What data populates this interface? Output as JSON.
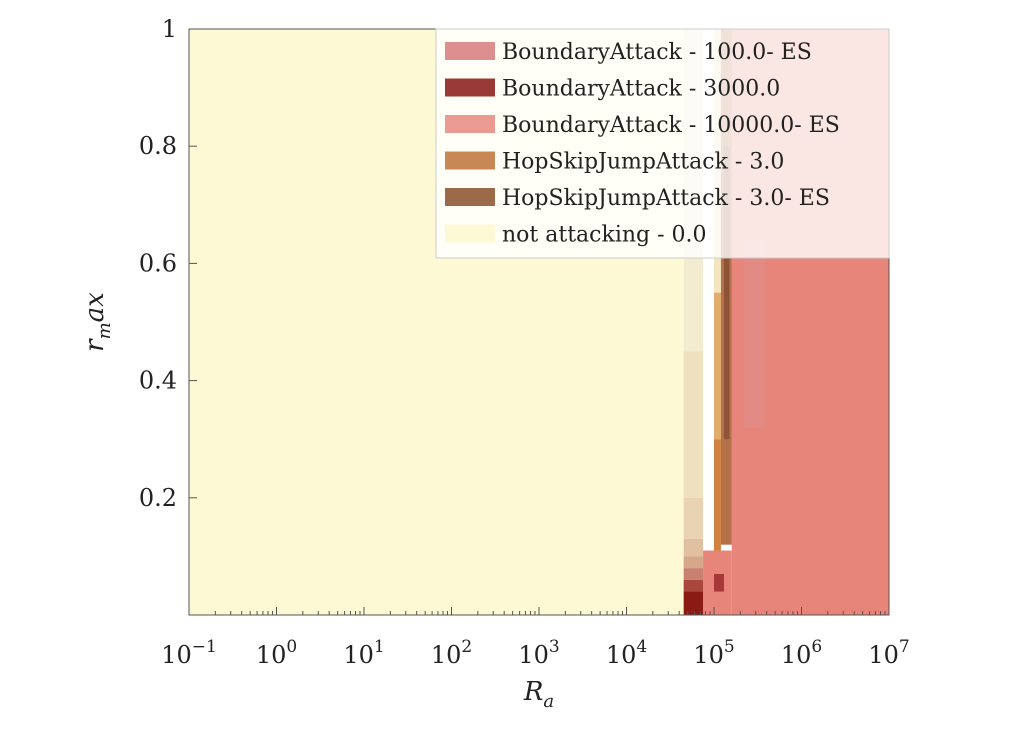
{
  "chart_data": {
    "type": "heatmap",
    "title": "",
    "xlabel": {
      "base": "R",
      "sub": "a"
    },
    "ylabel": {
      "base": "r",
      "sub": "m",
      "rest": "ax"
    },
    "x_scale": "log",
    "x_range": [
      0.1,
      10000000
    ],
    "y_range": [
      0,
      1
    ],
    "x_ticks": [
      {
        "value": 0.1,
        "base": "10",
        "exp": "−1"
      },
      {
        "value": 1,
        "base": "10",
        "exp": "0"
      },
      {
        "value": 10,
        "base": "10",
        "exp": "1"
      },
      {
        "value": 100,
        "base": "10",
        "exp": "2"
      },
      {
        "value": 1000,
        "base": "10",
        "exp": "3"
      },
      {
        "value": 10000,
        "base": "10",
        "exp": "4"
      },
      {
        "value": 100000,
        "base": "10",
        "exp": "5"
      },
      {
        "value": 1000000,
        "base": "10",
        "exp": "6"
      },
      {
        "value": 10000000,
        "base": "10",
        "exp": "7"
      }
    ],
    "y_ticks": [
      {
        "value": 0.2,
        "label": "0.2"
      },
      {
        "value": 0.4,
        "label": "0.4"
      },
      {
        "value": 0.6,
        "label": "0.6"
      },
      {
        "value": 0.8,
        "label": "0.8"
      },
      {
        "value": 1,
        "label": "1"
      }
    ],
    "grid": false,
    "legend_position": "top-right",
    "legend": [
      {
        "label": "BoundaryAttack - 100.0- ES",
        "color": "#dd8f8f"
      },
      {
        "label": "BoundaryAttack - 3000.0",
        "color": "#993a36"
      },
      {
        "label": "BoundaryAttack - 10000.0- ES",
        "color": "#ea9a90"
      },
      {
        "label": "HopSkipJumpAttack - 3.0",
        "color": "#c98755"
      },
      {
        "label": "HopSkipJumpAttack - 3.0- ES",
        "color": "#9b6a4a"
      },
      {
        "label": "not attacking - 0.0",
        "color": "#fdf9d4"
      }
    ],
    "regions": [
      {
        "label": "not attacking - 0.0",
        "x0": 0.1,
        "x1": 45000,
        "y0": 0,
        "y1": 1,
        "color": "#fdf9d4"
      },
      {
        "label": "BoundaryAttack - 10000.0- ES",
        "x0": 160000,
        "x1": 10000000,
        "y0": 0,
        "y1": 1,
        "color": "#e7857a"
      },
      {
        "label": "BoundaryAttack - 10000.0- ES",
        "x0": 75000,
        "x1": 160000,
        "y0": 0,
        "y1": 0.11,
        "color": "#e7857a"
      },
      {
        "label": "BoundaryAttack - 100.0- ES",
        "x0": 220000,
        "x1": 380000,
        "y0": 0.32,
        "y1": 0.64,
        "color": "#e28a84"
      },
      {
        "label": "not attacking - 0.0",
        "x0": 45000,
        "x1": 75000,
        "y0": 0.45,
        "y1": 1,
        "color": "#f4ecd0"
      },
      {
        "label": "not attacking - 0.0",
        "x0": 45000,
        "x1": 75000,
        "y0": 0.2,
        "y1": 0.45,
        "color": "#efe0c0"
      },
      {
        "label": "not attacking - 0.0",
        "x0": 45000,
        "x1": 75000,
        "y0": 0.13,
        "y1": 0.2,
        "color": "#e9d3b3"
      },
      {
        "label": "not attacking - 0.0",
        "x0": 45000,
        "x1": 75000,
        "y0": 0.1,
        "y1": 0.13,
        "color": "#e0c0a0"
      },
      {
        "label": "not attacking - 0.0",
        "x0": 45000,
        "x1": 75000,
        "y0": 0.08,
        "y1": 0.1,
        "color": "#d6a888"
      },
      {
        "label": "BoundaryAttack - 3000.0",
        "x0": 45000,
        "x1": 75000,
        "y0": 0.06,
        "y1": 0.08,
        "color": "#c98070"
      },
      {
        "label": "BoundaryAttack - 3000.0",
        "x0": 45000,
        "x1": 75000,
        "y0": 0.04,
        "y1": 0.06,
        "color": "#a8483c"
      },
      {
        "label": "BoundaryAttack - 3000.0",
        "x0": 45000,
        "x1": 75000,
        "y0": 0,
        "y1": 0.04,
        "color": "#8b1a12"
      },
      {
        "label": "not attacking - 0.0",
        "x0": 100000,
        "x1": 120000,
        "y0": 0.11,
        "y1": 1,
        "color": "#f3e6bf"
      },
      {
        "label": "HopSkipJumpAttack - 3.0",
        "x0": 100000,
        "x1": 120000,
        "y0": 0.11,
        "y1": 0.3,
        "color": "#d0823e"
      },
      {
        "label": "HopSkipJumpAttack - 3.0",
        "x0": 100000,
        "x1": 120000,
        "y0": 0.3,
        "y1": 0.55,
        "color": "#e2ad6c"
      },
      {
        "label": "HopSkipJumpAttack - 3.0- ES",
        "x0": 120000,
        "x1": 160000,
        "y0": 0.12,
        "y1": 1,
        "color": "#b4714a"
      },
      {
        "label": "HopSkipJumpAttack - 3.0- ES",
        "x0": 130000,
        "x1": 150000,
        "y0": 0.3,
        "y1": 0.8,
        "color": "#8e5437"
      },
      {
        "label": "BoundaryAttack - 3000.0",
        "x0": 100000,
        "x1": 130000,
        "y0": 0.04,
        "y1": 0.07,
        "color": "#a8373a"
      }
    ]
  }
}
